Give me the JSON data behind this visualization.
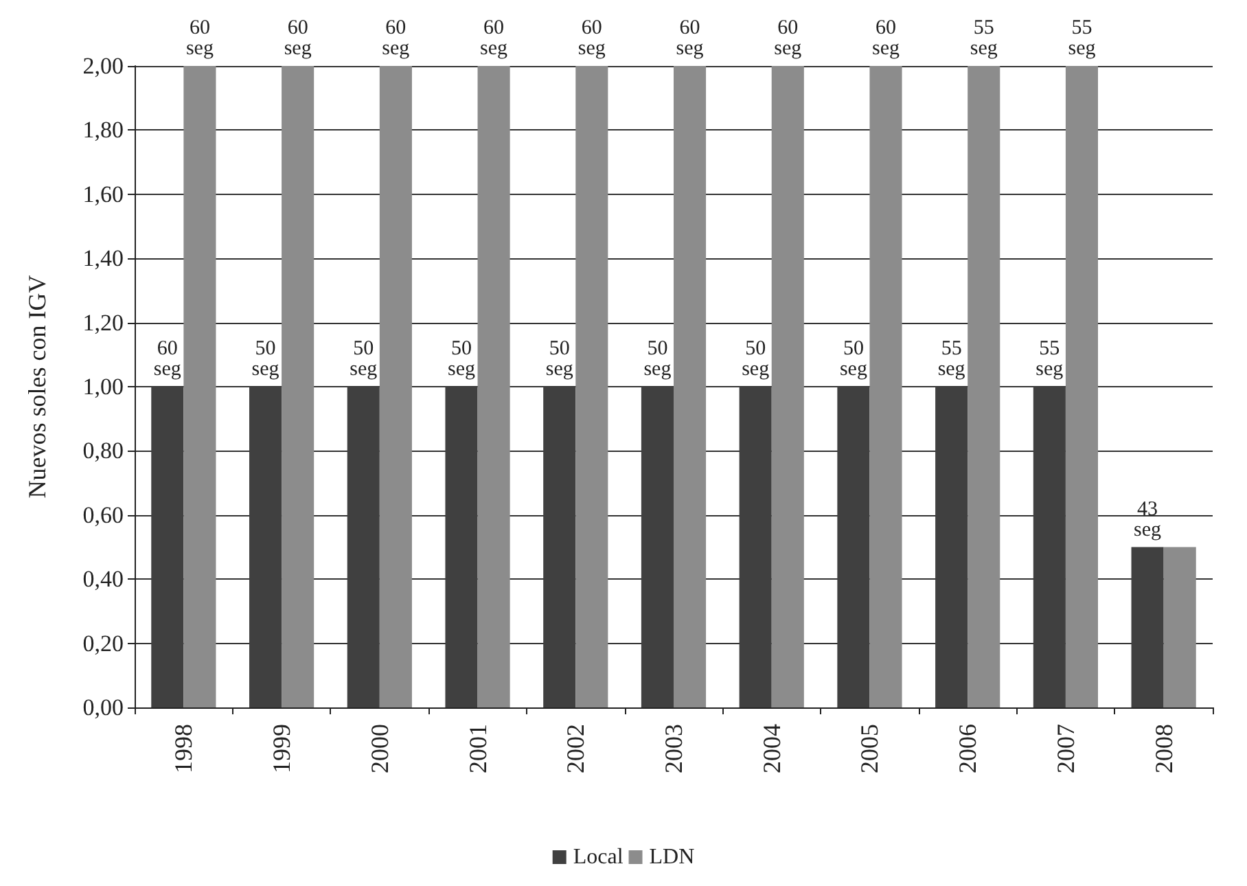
{
  "chart_data": {
    "type": "bar",
    "ylabel": "Nuevos soles con IGV",
    "categories": [
      "1998",
      "1999",
      "2000",
      "2001",
      "2002",
      "2003",
      "2004",
      "2005",
      "2006",
      "2007",
      "2008"
    ],
    "series": [
      {
        "name": "Local",
        "color": "#404040",
        "values": [
          1,
          1,
          1,
          1,
          1,
          1,
          1,
          1,
          1,
          1,
          0.5
        ]
      },
      {
        "name": "LDN",
        "color": "#8c8c8c",
        "values": [
          2,
          2,
          2,
          2,
          2,
          2,
          2,
          2,
          2,
          2,
          0.5
        ]
      }
    ],
    "annotations": [
      {
        "text": "60\nseg",
        "x": "1998",
        "y": 1
      },
      {
        "text": "50\nseg",
        "x": "1999",
        "y": 1
      },
      {
        "text": "50\nseg",
        "x": "2000",
        "y": 1
      },
      {
        "text": "50\nseg",
        "x": "2001",
        "y": 1
      },
      {
        "text": "50\nseg",
        "x": "2002",
        "y": 1
      },
      {
        "text": "50\nseg",
        "x": "2003",
        "y": 1
      },
      {
        "text": "50\nseg",
        "x": "2004",
        "y": 1
      },
      {
        "text": "50\nseg",
        "x": "2005",
        "y": 1
      },
      {
        "text": "55\nseg",
        "x": "2006",
        "y": 1
      },
      {
        "text": "55\nseg",
        "x": "2007",
        "y": 1
      },
      {
        "text": "60\nseg",
        "x": "1998",
        "y": 2
      },
      {
        "text": "60\nseg",
        "x": "1999",
        "y": 2
      },
      {
        "text": "60\nseg",
        "x": "2000",
        "y": 2
      },
      {
        "text": "60\nseg",
        "x": "2001",
        "y": 2
      },
      {
        "text": "60\nseg",
        "x": "2002",
        "y": 2
      },
      {
        "text": "60\nseg",
        "x": "2003",
        "y": 2
      },
      {
        "text": "60\nseg",
        "x": "2004",
        "y": 2
      },
      {
        "text": "60\nseg",
        "x": "2005",
        "y": 2
      },
      {
        "text": "55\nseg",
        "x": "2006",
        "y": 2
      },
      {
        "text": "55\nseg",
        "x": "2007",
        "y": 2
      },
      {
        "text": "43\nseg",
        "x": "2008",
        "y": 0.5
      }
    ],
    "ylim": [
      0,
      2
    ],
    "yticks": [
      {
        "value": 0,
        "label": "0,00"
      },
      {
        "value": 0.2,
        "label": "0,20"
      },
      {
        "value": 0.4,
        "label": "0,40"
      },
      {
        "value": 0.6,
        "label": "0,60"
      },
      {
        "value": 0.8,
        "label": "0,80"
      },
      {
        "value": 1,
        "label": "1,00"
      },
      {
        "value": 1.2,
        "label": "1,20"
      },
      {
        "value": 1.4,
        "label": "1,40"
      },
      {
        "value": 1.6,
        "label": "1,60"
      },
      {
        "value": 1.8,
        "label": "1,80"
      },
      {
        "value": 2,
        "label": "2,00"
      }
    ],
    "grid": "y",
    "legend": "bottom"
  }
}
